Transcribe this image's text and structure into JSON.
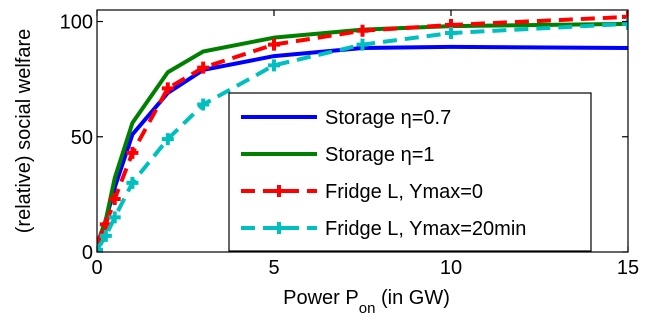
{
  "chart_data": {
    "type": "line",
    "title": "",
    "xlabel": "Power P",
    "xlabel_sub": "on",
    "xlabel_suffix": " (in GW)",
    "ylabel": "(relative) social welfare",
    "xlim": [
      0,
      15
    ],
    "ylim": [
      0,
      100
    ],
    "xticks": [
      0,
      5,
      10,
      15
    ],
    "yticks": [
      0,
      50,
      100
    ],
    "grid": false,
    "legend_position": "bottom-right",
    "series": [
      {
        "name": "Storage η=0.7",
        "color": "#0000ff",
        "style": "solid",
        "marker": "none",
        "x": [
          0,
          0.25,
          0.5,
          1,
          2,
          3,
          5,
          7.5,
          10,
          15
        ],
        "y": [
          3,
          14,
          28,
          51,
          69,
          79,
          85,
          88.5,
          89,
          88.5
        ]
      },
      {
        "name": "Storage η=1",
        "color": "#008000",
        "style": "solid",
        "marker": "none",
        "x": [
          0,
          0.25,
          0.5,
          1,
          2,
          3,
          5,
          7.5,
          10,
          15
        ],
        "y": [
          3,
          14,
          32,
          56,
          78,
          87,
          93,
          96.5,
          98,
          99
        ]
      },
      {
        "name": "Fridge L, Ymax=0",
        "color": "#ff0000",
        "style": "dashed",
        "marker": "plus",
        "x": [
          0,
          0.25,
          0.5,
          1,
          2,
          3,
          5,
          7.5,
          10,
          15
        ],
        "y": [
          4,
          12,
          23,
          43,
          71,
          80,
          90,
          96,
          98.5,
          102
        ]
      },
      {
        "name": "Fridge L, Ymax=20min",
        "color": "#00bfbf",
        "style": "dashed",
        "marker": "plus",
        "x": [
          0,
          0.25,
          0.5,
          1,
          2,
          3,
          5,
          7.5,
          10,
          15
        ],
        "y": [
          1,
          7,
          15,
          30,
          49,
          64,
          81,
          90,
          95,
          99
        ]
      }
    ]
  }
}
